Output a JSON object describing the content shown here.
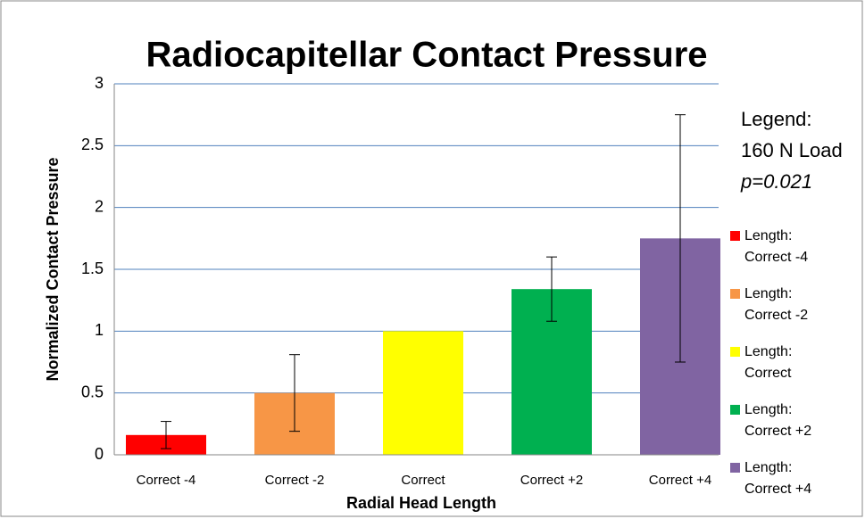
{
  "chart_data": {
    "type": "bar",
    "title": "Radiocapitellar Contact Pressure",
    "x_label": "Radial Head Length",
    "y_label": "Normalized Contact Pressure",
    "categories": [
      "Correct -4",
      "Correct -2",
      "Correct",
      "Correct +2",
      "Correct +4"
    ],
    "values": [
      0.16,
      0.5,
      1.0,
      1.34,
      1.75
    ],
    "errors": [
      0.11,
      0.31,
      null,
      0.26,
      1.0
    ],
    "colors": [
      "#ff0000",
      "#f79646",
      "#ffff00",
      "#00b050",
      "#8064a2"
    ],
    "ylim": [
      0,
      3
    ],
    "yticks": [
      0,
      0.5,
      1,
      1.5,
      2,
      2.5,
      3
    ],
    "grid": true,
    "legend_heading": "Legend:",
    "legend_load": "160 N Load",
    "legend_p": "p=0.021",
    "legend_labels": [
      [
        "Length:",
        "Correct -4"
      ],
      [
        "Length:",
        "Correct -2"
      ],
      [
        "Length:",
        "Correct"
      ],
      [
        "Length:",
        "Correct +2"
      ],
      [
        "Length:",
        "Correct +4"
      ]
    ]
  }
}
